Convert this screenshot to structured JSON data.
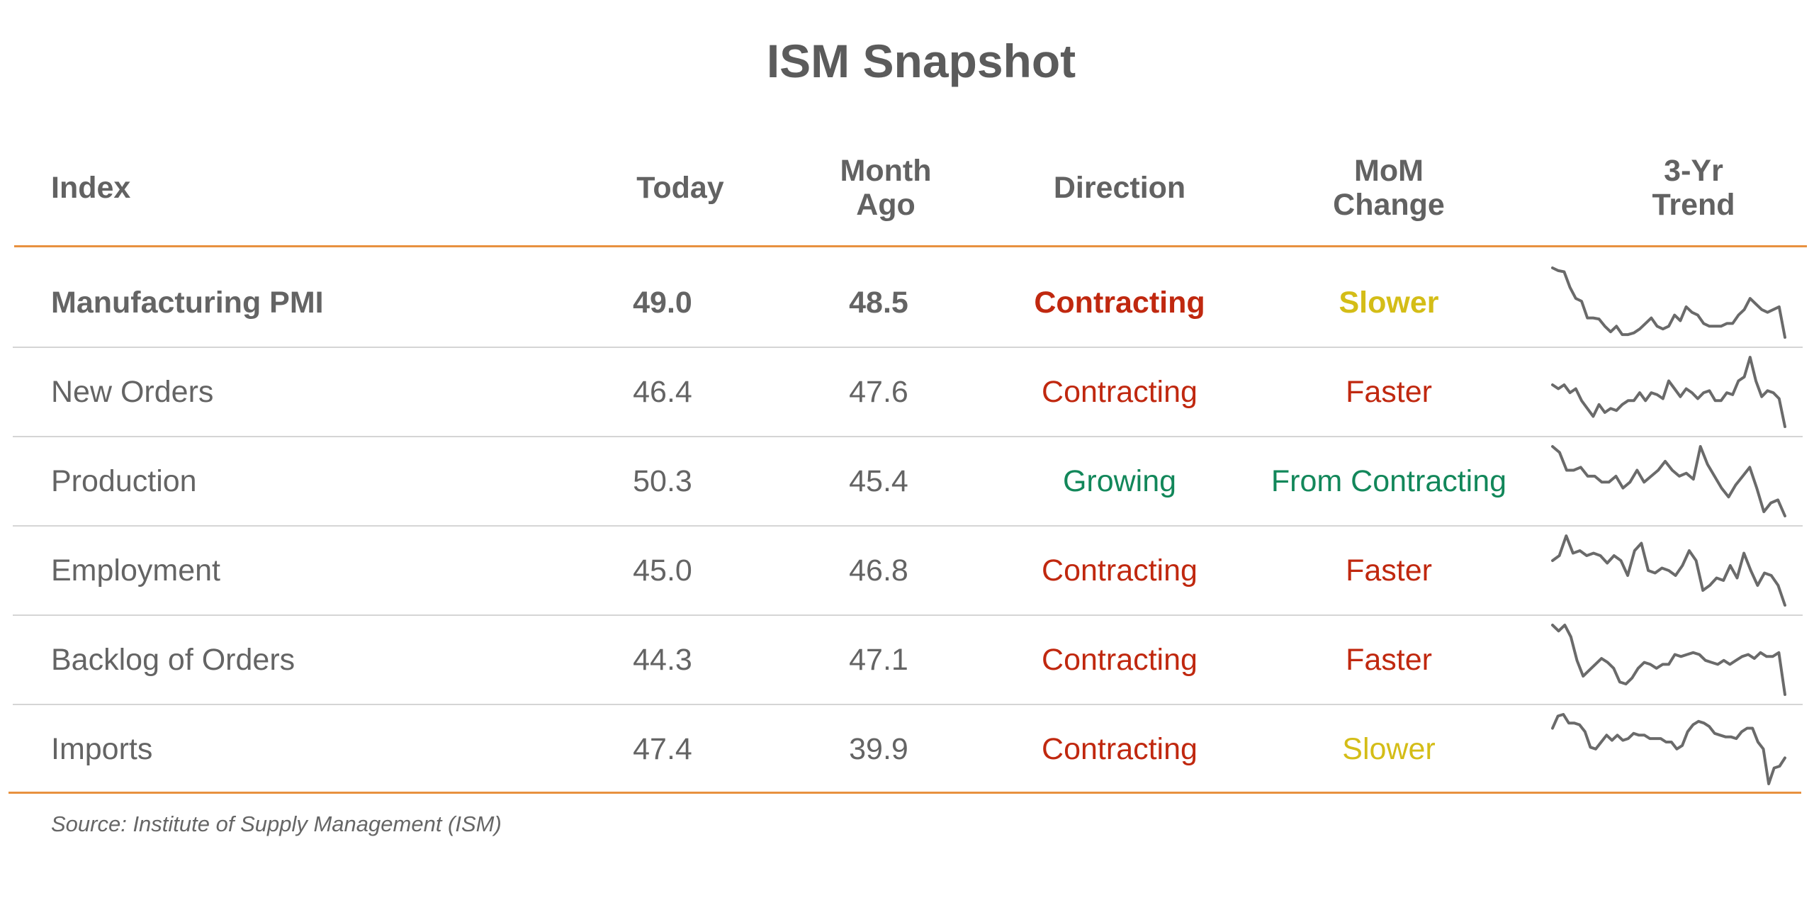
{
  "title": "ISM Snapshot",
  "columns": {
    "index": "Index",
    "today": "Today",
    "month_ago": [
      "Month",
      "Ago"
    ],
    "direction": "Direction",
    "mom_change": [
      "MoM",
      "Change"
    ],
    "trend": [
      "3-Yr",
      "Trend"
    ]
  },
  "colors": {
    "accent_rule": "#e8913f",
    "contracting": "#c0280f",
    "growing": "#12875a",
    "slower": "#d4bd17",
    "faster": "#c0280f",
    "from_contracting": "#12875a"
  },
  "chart_data": {
    "type": "table",
    "rows": [
      {
        "index": "Manufacturing PMI",
        "today": "49.0",
        "month_ago": "48.5",
        "direction": "Contracting",
        "direction_color": "#c0280f",
        "mom_change": "Slower",
        "mom_color": "#d4bd17",
        "bold": true,
        "trend": [
          61.5,
          61.0,
          60.8,
          58.0,
          56.0,
          55.5,
          52.5,
          52.5,
          52.3,
          51.0,
          50.0,
          51.0,
          49.5,
          49.5,
          49.8,
          50.5,
          51.5,
          52.5,
          51.0,
          50.5,
          51.0,
          53.0,
          52.0,
          54.5,
          53.5,
          53.0,
          51.5,
          51.0,
          51.0,
          51.0,
          51.5,
          51.5,
          53.0,
          54.0,
          56.0,
          55.0,
          54.0,
          53.5,
          54.0,
          54.5,
          49.0
        ]
      },
      {
        "index": "New Orders",
        "today": "46.4",
        "month_ago": "47.6",
        "direction": "Contracting",
        "direction_color": "#c0280f",
        "mom_change": "Faster",
        "mom_color": "#c0280f",
        "bold": false,
        "trend": [
          57.0,
          56.0,
          57.0,
          55.0,
          56.0,
          53.0,
          51.0,
          49.0,
          52.0,
          50.0,
          51.0,
          50.5,
          52.0,
          53.0,
          53.0,
          55.0,
          53.0,
          55.0,
          54.5,
          53.5,
          58.0,
          56.0,
          54.0,
          56.0,
          55.0,
          53.5,
          55.0,
          55.5,
          53.0,
          53.0,
          55.0,
          54.5,
          58.0,
          59.0,
          64.0,
          58.0,
          54.0,
          55.5,
          55.0,
          53.5,
          46.4
        ]
      },
      {
        "index": "Production",
        "today": "50.3",
        "month_ago": "45.4",
        "direction": "Growing",
        "direction_color": "#12875a",
        "mom_change": "From Contracting",
        "mom_color": "#12875a",
        "bold": false,
        "trend": [
          62.0,
          61.0,
          58.0,
          58.0,
          58.5,
          57.0,
          57.0,
          56.0,
          56.0,
          57.0,
          55.0,
          56.0,
          58.0,
          56.0,
          57.0,
          58.0,
          59.5,
          58.0,
          57.0,
          57.5,
          56.5,
          62.0,
          59.0,
          57.0,
          55.0,
          53.5,
          55.5,
          57.0,
          58.5,
          55.0,
          51.0,
          52.5,
          53.0,
          50.3
        ]
      },
      {
        "index": "Employment",
        "today": "45.0",
        "month_ago": "46.8",
        "direction": "Contracting",
        "direction_color": "#c0280f",
        "mom_change": "Faster",
        "mom_color": "#c0280f",
        "bold": false,
        "trend": [
          54.0,
          55.0,
          59.0,
          55.5,
          56.0,
          55.0,
          55.5,
          55.0,
          53.5,
          55.0,
          54.0,
          51.0,
          56.0,
          57.5,
          52.0,
          51.5,
          52.5,
          52.0,
          51.0,
          53.0,
          56.0,
          54.0,
          48.0,
          49.0,
          50.5,
          50.0,
          53.0,
          50.5,
          55.5,
          52.0,
          49.0,
          51.5,
          51.0,
          49.0,
          45.0
        ]
      },
      {
        "index": "Backlog of Orders",
        "today": "44.3",
        "month_ago": "47.1",
        "direction": "Contracting",
        "direction_color": "#c0280f",
        "mom_change": "Faster",
        "mom_color": "#c0280f",
        "bold": false,
        "trend": [
          62.0,
          60.5,
          62.0,
          59.0,
          53.0,
          49.0,
          50.5,
          52.0,
          53.5,
          52.5,
          51.0,
          47.5,
          47.0,
          48.5,
          51.0,
          52.5,
          52.0,
          51.0,
          52.0,
          52.0,
          54.5,
          54.0,
          54.5,
          55.0,
          54.5,
          53.0,
          52.5,
          52.0,
          53.0,
          52.0,
          53.0,
          54.0,
          54.5,
          53.5,
          55.0,
          54.0,
          54.0,
          55.0,
          44.3
        ]
      },
      {
        "index": "Imports",
        "today": "47.4",
        "month_ago": "39.9",
        "direction": "Contracting",
        "direction_color": "#c0280f",
        "mom_change": "Slower",
        "mom_color": "#d4bd17",
        "bold": false,
        "trend": [
          56.0,
          59.5,
          60.0,
          57.5,
          57.5,
          57.0,
          55.0,
          50.5,
          50.0,
          52.0,
          54.0,
          52.5,
          54.0,
          52.5,
          53.0,
          54.5,
          54.0,
          54.0,
          53.0,
          53.0,
          53.0,
          52.0,
          52.0,
          50.0,
          51.0,
          55.0,
          57.0,
          58.0,
          57.5,
          56.5,
          54.5,
          54.0,
          53.5,
          53.5,
          53.0,
          55.0,
          56.0,
          56.0,
          52.0,
          50.0,
          39.9,
          44.5,
          45.0,
          47.4
        ]
      }
    ]
  },
  "source": "Source: Institute of Supply Management (ISM)"
}
